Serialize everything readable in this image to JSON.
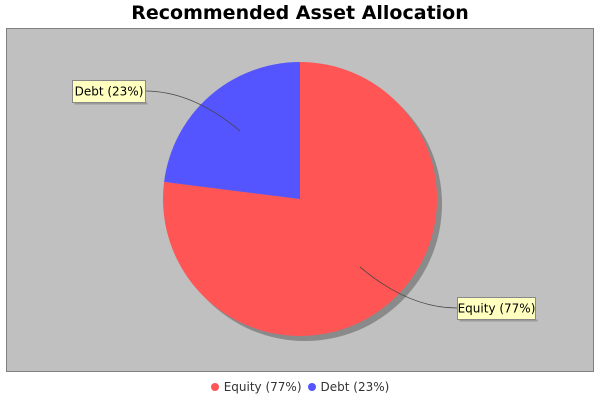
{
  "chart_data": {
    "type": "pie",
    "title": "Recommended Asset Allocation",
    "slices": [
      {
        "label": "Equity",
        "value": 77,
        "display": "Equity (77%)",
        "color": "#ff5555"
      },
      {
        "label": "Debt",
        "value": 23,
        "display": "Debt (23%)",
        "color": "#5555ff"
      }
    ],
    "plot_background": "#c0c0c0",
    "label_background": "#ffffc0",
    "legend_position": "bottom"
  }
}
